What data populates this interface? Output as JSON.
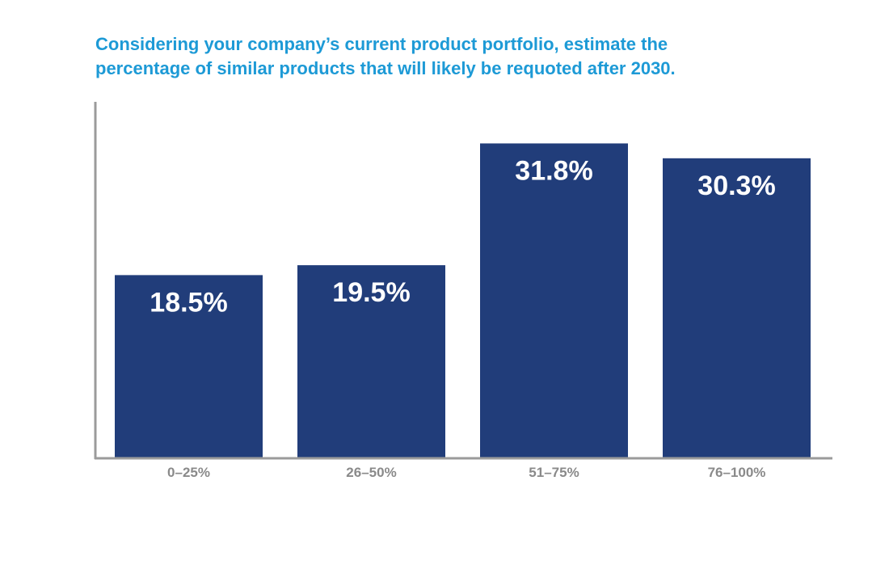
{
  "chart_data": {
    "type": "bar",
    "title_lines": [
      "Considering your company’s current product portfolio, estimate the",
      "percentage of similar products that will likely be requoted after 2030."
    ],
    "categories": [
      "0–25%",
      "26–50%",
      "51–75%",
      "76–100%"
    ],
    "values": [
      18.5,
      19.5,
      31.8,
      30.3
    ],
    "value_labels": [
      "18.5%",
      "19.5%",
      "31.8%",
      "30.3%"
    ],
    "ylim": [
      0,
      36
    ],
    "grid": false,
    "bar_color": "#213d7a",
    "axis_color": "#9b9b9b",
    "title_color": "#1d9ad6"
  }
}
